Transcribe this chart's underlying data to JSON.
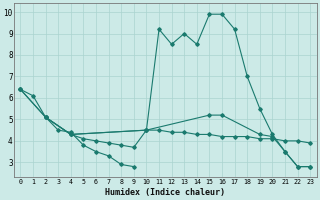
{
  "xlabel": "Humidex (Indice chaleur)",
  "series": {
    "s1_x": [
      0,
      1,
      2,
      3,
      4,
      5,
      6,
      7,
      8,
      9
    ],
    "s1_y": [
      6.4,
      6.1,
      5.1,
      4.5,
      4.4,
      3.8,
      3.5,
      3.3,
      2.9,
      2.8
    ],
    "s2_x": [
      0,
      2,
      4,
      10,
      11,
      12,
      13,
      14,
      15,
      16,
      17,
      18,
      19,
      20,
      21,
      22,
      23
    ],
    "s2_y": [
      6.4,
      5.1,
      4.3,
      4.5,
      9.2,
      8.5,
      9.0,
      8.5,
      9.9,
      9.9,
      9.2,
      7.0,
      5.5,
      4.3,
      3.5,
      2.8,
      2.8
    ],
    "s3_x": [
      0,
      2,
      4,
      10,
      15,
      16,
      19,
      20,
      21,
      22,
      23
    ],
    "s3_y": [
      6.4,
      5.1,
      4.3,
      4.5,
      5.2,
      5.2,
      4.3,
      4.2,
      3.5,
      2.8,
      2.8
    ],
    "s4_x": [
      2,
      4,
      5,
      6,
      7,
      8,
      9,
      10,
      11,
      12,
      13,
      14,
      15,
      16,
      17,
      18,
      19,
      20,
      21,
      22,
      23
    ],
    "s4_y": [
      5.1,
      4.3,
      4.1,
      4.0,
      3.9,
      3.8,
      3.7,
      4.5,
      4.5,
      4.4,
      4.4,
      4.3,
      4.3,
      4.2,
      4.2,
      4.2,
      4.1,
      4.1,
      4.0,
      4.0,
      3.9
    ]
  },
  "color": "#1a7a6e",
  "bg_color": "#cceae7",
  "grid_color": "#aad4d0",
  "xlim": [
    -0.5,
    23.5
  ],
  "ylim": [
    2.3,
    10.4
  ],
  "yticks": [
    3,
    4,
    5,
    6,
    7,
    8,
    9,
    10
  ],
  "xticks": [
    0,
    1,
    2,
    3,
    4,
    5,
    6,
    7,
    8,
    9,
    10,
    11,
    12,
    13,
    14,
    15,
    16,
    17,
    18,
    19,
    20,
    21,
    22,
    23
  ]
}
